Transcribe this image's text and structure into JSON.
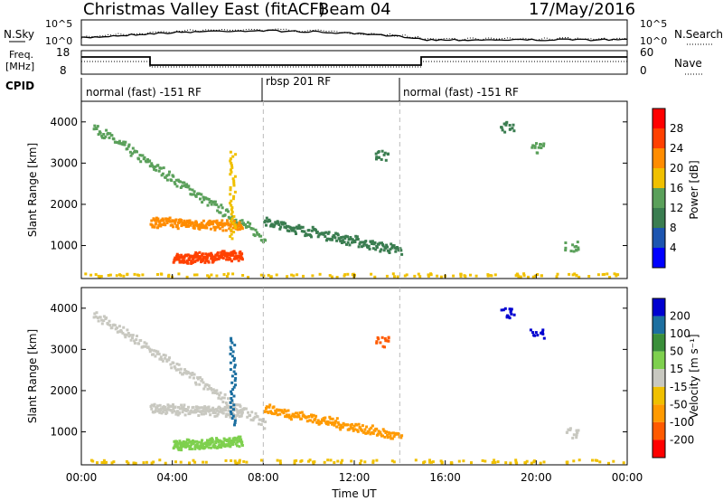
{
  "header": {
    "title": "Christmas Valley East (fitACF)",
    "beam": "Beam 04",
    "date": "17/May/2016"
  },
  "status_panels": {
    "nsky_label": "N.Sky",
    "nsky_ticks": [
      "10^5",
      "10^0"
    ],
    "nsearch_label": "N.Search",
    "nsearch_ticks": [
      "10^5",
      "10^0"
    ],
    "freq_label_line1": "Freq.",
    "freq_label_line2": "[MHz]",
    "freq_ticks": [
      "18",
      "8"
    ],
    "nave_label": "Nave",
    "nave_ticks": [
      "60",
      "0"
    ],
    "cpid_label": "CPID",
    "cpid_segments": [
      {
        "label": "normal (fast) -151 RF",
        "start": 0,
        "end": 8
      },
      {
        "label": "rbsp 201 RF",
        "start": 8,
        "end": 14
      },
      {
        "label": "normal (fast) -151 RF",
        "start": 14,
        "end": 24
      }
    ]
  },
  "power_scale": {
    "title": "Power [dB]",
    "ticks": [
      "28",
      "24",
      "20",
      "16",
      "12",
      "8",
      "4"
    ],
    "colors": [
      "#0000ff",
      "#1c55b0",
      "#3a7d50",
      "#5aa05a",
      "#f0c000",
      "#ff8c00",
      "#ff4000",
      "#ff0000"
    ]
  },
  "velocity_scale": {
    "title": "Velocity [m s⁻¹]",
    "ticks": [
      "200",
      "100",
      "50",
      "15",
      "-15",
      "-50",
      "-100",
      "-200"
    ],
    "colors": [
      "#ff0000",
      "#ff5a00",
      "#ff9a00",
      "#f0c000",
      "#c8c8c0",
      "#7ed04e",
      "#3a8f3a",
      "#1c6fa0",
      "#0000d0"
    ]
  },
  "chart_data": [
    {
      "type": "heatmap",
      "name": "Power",
      "ylabel": "Slant Range [km]",
      "xlabel": "",
      "ylim": [
        200,
        4500
      ],
      "xlim": [
        0,
        24
      ],
      "yticks": [
        "1000",
        "2000",
        "3000",
        "4000"
      ],
      "xticks": [
        "00:00",
        "04:00",
        "08:00",
        "12:00",
        "16:00",
        "20:00",
        "00:00"
      ],
      "features": [
        {
          "desc": "band",
          "t0": 0.5,
          "t1": 8.0,
          "r0": 3900,
          "r1": 1200,
          "level": 12
        },
        {
          "desc": "band",
          "t0": 3.0,
          "t1": 7.0,
          "r0": 1600,
          "r1": 1500,
          "level": 20
        },
        {
          "desc": "band",
          "t0": 4.0,
          "t1": 7.0,
          "r0": 700,
          "r1": 800,
          "level": 26
        },
        {
          "desc": "spike",
          "t": 6.6,
          "r0": 1200,
          "r1": 3300,
          "level": 18
        },
        {
          "desc": "band",
          "t0": 8.0,
          "t1": 14.0,
          "r0": 1600,
          "r1": 900,
          "level": 10
        },
        {
          "desc": "patch",
          "t": 13.2,
          "r": 3200,
          "level": 10
        },
        {
          "desc": "patch",
          "t": 18.7,
          "r": 3900,
          "level": 8
        },
        {
          "desc": "patch",
          "t": 20.0,
          "r": 3400,
          "level": 14
        },
        {
          "desc": "patch",
          "t": 21.5,
          "r": 1000,
          "level": 14
        },
        {
          "desc": "groundscatter",
          "t0": 0,
          "t1": 24,
          "r0": 200,
          "r1": 350,
          "level": 16
        }
      ]
    },
    {
      "type": "heatmap",
      "name": "Velocity",
      "ylabel": "Slant Range [km]",
      "xlabel": "Time UT",
      "ylim": [
        200,
        4500
      ],
      "xlim": [
        0,
        24
      ],
      "yticks": [
        "1000",
        "2000",
        "3000",
        "4000"
      ],
      "xticks": [
        "00:00",
        "04:00",
        "08:00",
        "12:00",
        "16:00",
        "20:00",
        "00:00"
      ],
      "features": [
        {
          "desc": "band",
          "t0": 0.5,
          "t1": 8.0,
          "r0": 3900,
          "r1": 1200,
          "level": 0
        },
        {
          "desc": "band",
          "t0": 3.0,
          "t1": 7.0,
          "r0": 1600,
          "r1": 1500,
          "level": 0
        },
        {
          "desc": "band",
          "t0": 4.0,
          "t1": 7.0,
          "r0": 700,
          "r1": 800,
          "level": 30
        },
        {
          "desc": "spike",
          "t": 6.6,
          "r0": 1200,
          "r1": 3300,
          "level": 150
        },
        {
          "desc": "band",
          "t0": 8.0,
          "t1": 14.0,
          "r0": 1600,
          "r1": 900,
          "level": -60
        },
        {
          "desc": "patch",
          "t": 13.2,
          "r": 3200,
          "level": -200
        },
        {
          "desc": "patch",
          "t": 18.7,
          "r": 3900,
          "level": 200
        },
        {
          "desc": "patch",
          "t": 20.0,
          "r": 3400,
          "level": 200
        },
        {
          "desc": "patch",
          "t": 21.5,
          "r": 1000,
          "level": 0
        },
        {
          "desc": "groundscatter",
          "t0": 0,
          "t1": 24,
          "r0": 200,
          "r1": 350,
          "level": -20
        }
      ]
    }
  ]
}
